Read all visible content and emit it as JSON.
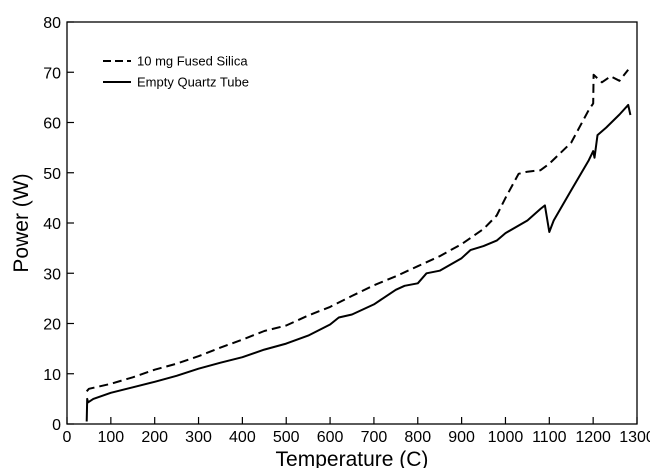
{
  "chart_data": {
    "type": "line",
    "title": "",
    "xlabel": "Temperature (C)",
    "ylabel": "Power (W)",
    "xlim": [
      0,
      1300
    ],
    "ylim": [
      0,
      80
    ],
    "xticks": [
      0,
      100,
      200,
      300,
      400,
      500,
      600,
      700,
      800,
      900,
      1000,
      1100,
      1200,
      1300
    ],
    "yticks": [
      0,
      10,
      20,
      30,
      40,
      50,
      60,
      70,
      80
    ],
    "grid": false,
    "legend_position": "top-left",
    "series": [
      {
        "name": "10 mg Fused Silica",
        "style": "dashed",
        "color": "#000000",
        "points": [
          [
            45,
            6.5
          ],
          [
            50,
            7.0
          ],
          [
            100,
            8.0
          ],
          [
            150,
            9.3
          ],
          [
            200,
            10.8
          ],
          [
            250,
            12.0
          ],
          [
            300,
            13.5
          ],
          [
            350,
            15.2
          ],
          [
            400,
            16.8
          ],
          [
            450,
            18.5
          ],
          [
            500,
            19.6
          ],
          [
            550,
            21.6
          ],
          [
            600,
            23.3
          ],
          [
            650,
            25.5
          ],
          [
            700,
            27.6
          ],
          [
            750,
            29.4
          ],
          [
            800,
            31.4
          ],
          [
            850,
            33.4
          ],
          [
            900,
            35.8
          ],
          [
            950,
            38.8
          ],
          [
            980,
            41.5
          ],
          [
            1000,
            45.0
          ],
          [
            1030,
            49.8
          ],
          [
            1050,
            50.2
          ],
          [
            1080,
            50.5
          ],
          [
            1100,
            51.8
          ],
          [
            1150,
            56.0
          ],
          [
            1190,
            62.5
          ],
          [
            1200,
            63.8
          ],
          [
            1201,
            69.5
          ],
          [
            1220,
            68.0
          ],
          [
            1240,
            69.2
          ],
          [
            1260,
            68.3
          ],
          [
            1280,
            70.5
          ]
        ]
      },
      {
        "name": "Empty Quartz Tube",
        "style": "solid",
        "color": "#000000",
        "points": [
          [
            45,
            0.5
          ],
          [
            46,
            5.0
          ],
          [
            48,
            4.3
          ],
          [
            60,
            5.0
          ],
          [
            100,
            6.2
          ],
          [
            150,
            7.3
          ],
          [
            200,
            8.4
          ],
          [
            250,
            9.6
          ],
          [
            300,
            11.0
          ],
          [
            350,
            12.2
          ],
          [
            400,
            13.3
          ],
          [
            450,
            14.8
          ],
          [
            500,
            16.0
          ],
          [
            550,
            17.6
          ],
          [
            600,
            19.8
          ],
          [
            620,
            21.2
          ],
          [
            650,
            21.8
          ],
          [
            700,
            23.8
          ],
          [
            750,
            26.7
          ],
          [
            770,
            27.5
          ],
          [
            800,
            28.0
          ],
          [
            820,
            30.0
          ],
          [
            850,
            30.5
          ],
          [
            900,
            33.0
          ],
          [
            920,
            34.6
          ],
          [
            950,
            35.4
          ],
          [
            980,
            36.5
          ],
          [
            1000,
            38.0
          ],
          [
            1050,
            40.5
          ],
          [
            1080,
            42.8
          ],
          [
            1090,
            43.5
          ],
          [
            1100,
            38.2
          ],
          [
            1110,
            40.5
          ],
          [
            1150,
            46.5
          ],
          [
            1190,
            52.5
          ],
          [
            1200,
            54.3
          ],
          [
            1203,
            53.0
          ],
          [
            1210,
            57.5
          ],
          [
            1230,
            59.0
          ],
          [
            1260,
            61.6
          ],
          [
            1280,
            63.5
          ],
          [
            1285,
            61.5
          ]
        ]
      }
    ]
  }
}
